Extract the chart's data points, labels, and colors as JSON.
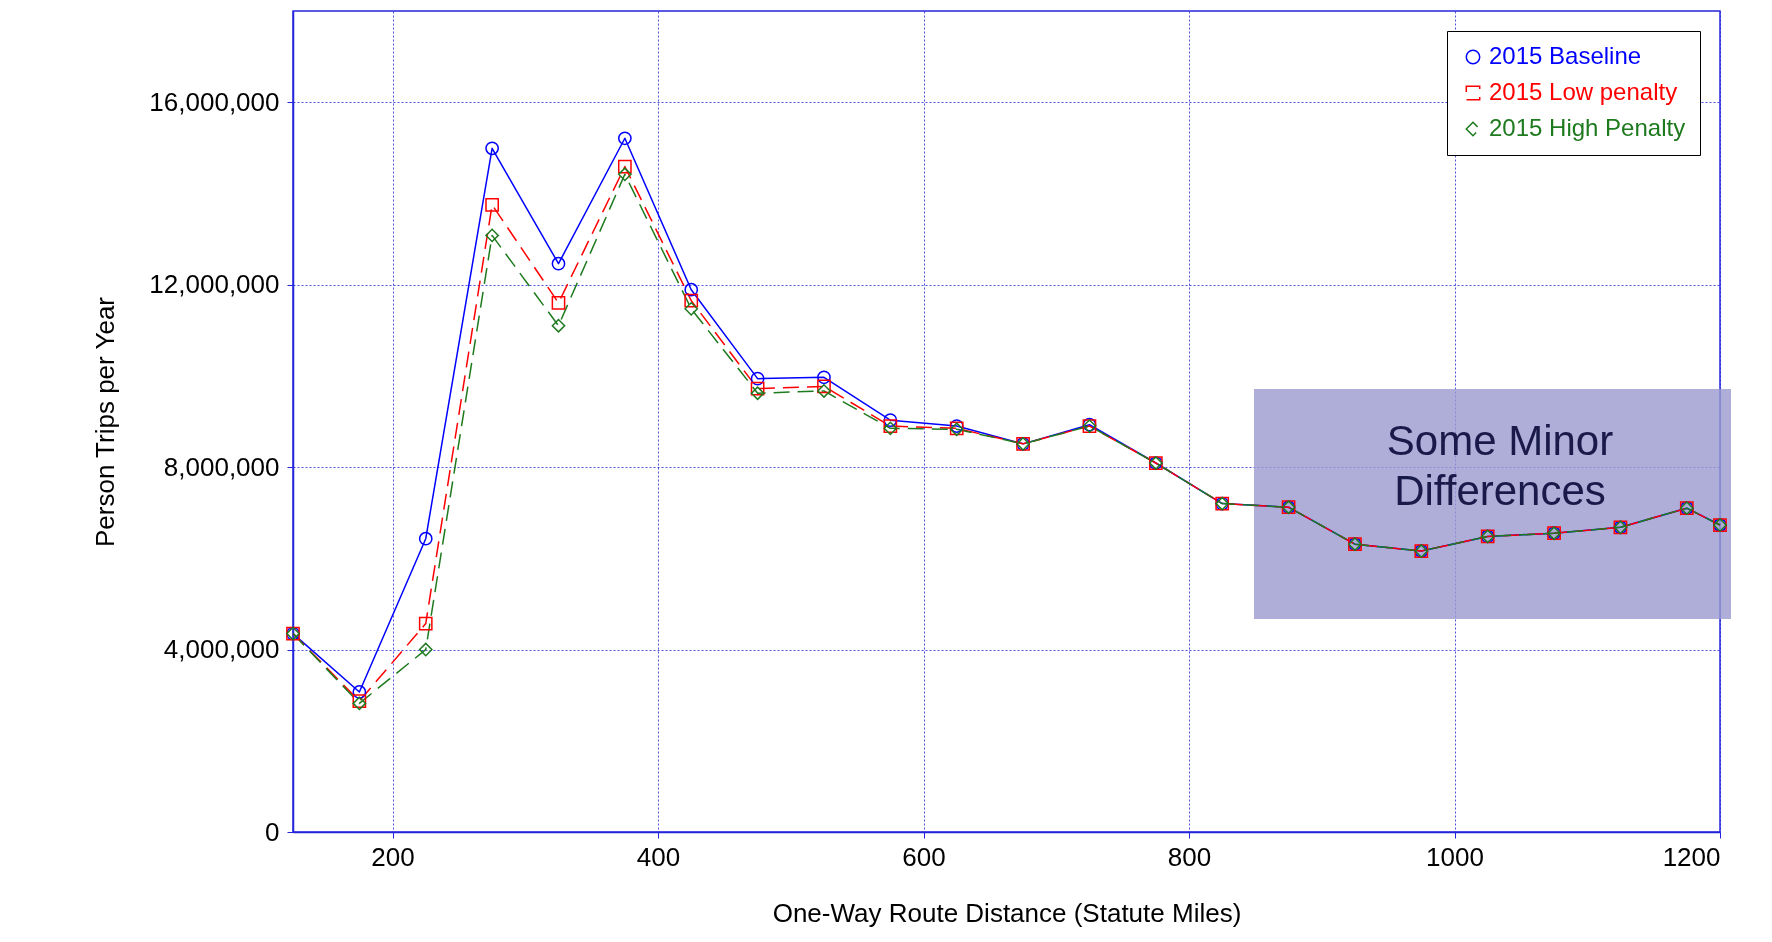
{
  "chart_data": {
    "type": "line",
    "xlabel": "One-Way Route Distance (Statute Miles)",
    "ylabel": "Person Trips per Year",
    "x": [
      125,
      175,
      225,
      275,
      325,
      375,
      425,
      475,
      525,
      575,
      625,
      675,
      725,
      775,
      825,
      875,
      925,
      975,
      1025,
      1075,
      1125,
      1175,
      1200
    ],
    "series": [
      {
        "name": "2015 Baseline",
        "color": "#0000ff",
        "marker": "circle",
        "line_style": "solid",
        "values": [
          4350000,
          3070000,
          6430000,
          14990000,
          12460000,
          15210000,
          11890000,
          9940000,
          9970000,
          9030000,
          8900000,
          8510000,
          8930000,
          8090000,
          7200000,
          7120000,
          6310000,
          6160000,
          6480000,
          6550000,
          6680000,
          7100000,
          6730000
        ]
      },
      {
        "name": "2015 Low penalty",
        "color": "#ff0000",
        "marker": "square",
        "line_style": "dashed",
        "values": [
          4350000,
          2870000,
          4570000,
          13750000,
          11600000,
          14590000,
          11650000,
          9720000,
          9770000,
          8900000,
          8850000,
          8510000,
          8900000,
          8090000,
          7200000,
          7120000,
          6310000,
          6160000,
          6480000,
          6550000,
          6680000,
          7100000,
          6730000
        ]
      },
      {
        "name": "2015 High Penalty",
        "color": "#1e7a1e",
        "marker": "diamond",
        "line_style": "dashed",
        "values": [
          4350000,
          2820000,
          4000000,
          13080000,
          11100000,
          14420000,
          11470000,
          9620000,
          9670000,
          8850000,
          8830000,
          8510000,
          8900000,
          8090000,
          7200000,
          7120000,
          6310000,
          6160000,
          6480000,
          6550000,
          6680000,
          7100000,
          6730000
        ]
      }
    ],
    "xlim": [
      125,
      1200
    ],
    "xticks": [
      200,
      400,
      600,
      800,
      1000,
      1200
    ],
    "ylim": [
      0,
      18000000
    ],
    "yticks": [
      0,
      {
        "value": 4000000,
        "label": "4,000,000"
      },
      {
        "value": 8000000,
        "label": "8,000,000"
      },
      {
        "value": 12000000,
        "label": "12,000,000"
      },
      {
        "value": 16000000,
        "label": "16,000,000"
      }
    ],
    "grid": true,
    "legend": "top right",
    "annotations": [
      "Some Minor\nDifferences"
    ]
  }
}
